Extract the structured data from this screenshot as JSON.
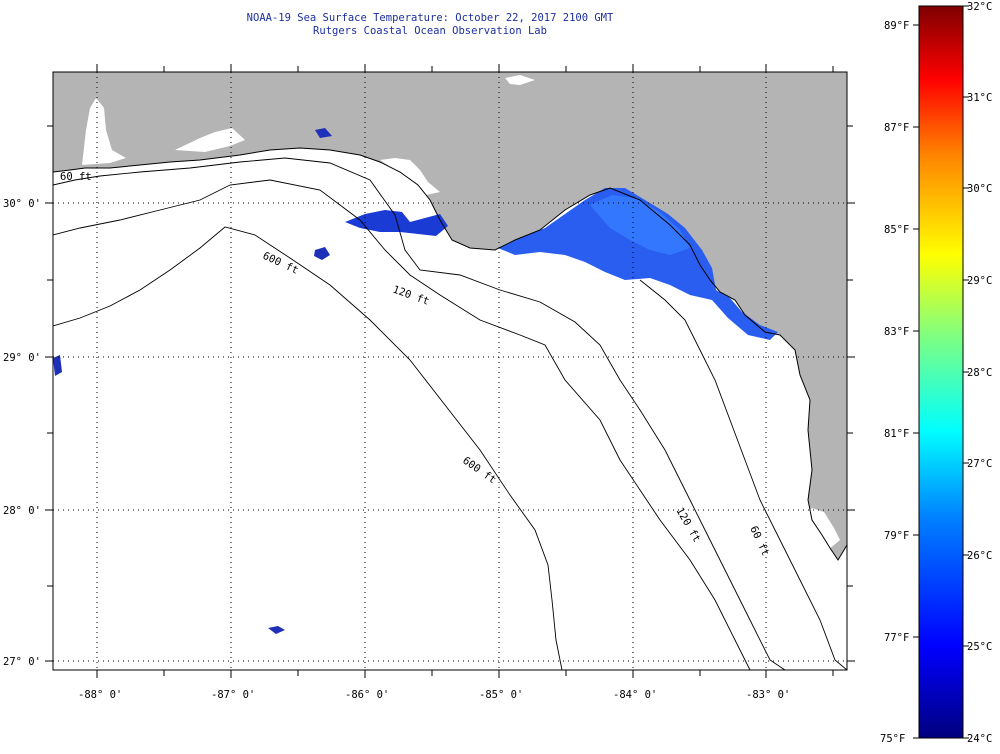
{
  "header": {
    "title": "NOAA-19 Sea Surface Temperature:  October 22, 2017 2100 GMT",
    "subtitle": "Rutgers Coastal Ocean Observation Lab"
  },
  "map": {
    "lat_labels": [
      "30° 0'",
      "29° 0'",
      "28° 0'",
      "27° 0'"
    ],
    "lon_labels": [
      "-88° 0'",
      "-87° 0'",
      "-86° 0'",
      "-85° 0'",
      "-84° 0'",
      "-83° 0'"
    ],
    "contour_labels": [
      "60 ft",
      "600 ft",
      "120 ft",
      "600 ft",
      "120 ft",
      "60 ft"
    ],
    "land_color": "#b4b4b4",
    "ocean_color": "#ffffff",
    "sst_colors": [
      "#1a3cd4",
      "#2a5ef0",
      "#3377ff",
      "#1e2fb8"
    ]
  },
  "colorbar": {
    "fahrenheit_labels": [
      "89°F",
      "87°F",
      "85°F",
      "83°F",
      "81°F",
      "79°F",
      "77°F",
      "75°F"
    ],
    "celsius_labels": [
      "32°C",
      "31°C",
      "30°C",
      "29°C",
      "28°C",
      "27°C",
      "26°C",
      "25°C",
      "24°C"
    ],
    "gradient": [
      "#00007f",
      "#0000ff",
      "#0080ff",
      "#00ffff",
      "#80ff80",
      "#ffff00",
      "#ff8000",
      "#ff0000",
      "#7f0000"
    ]
  }
}
